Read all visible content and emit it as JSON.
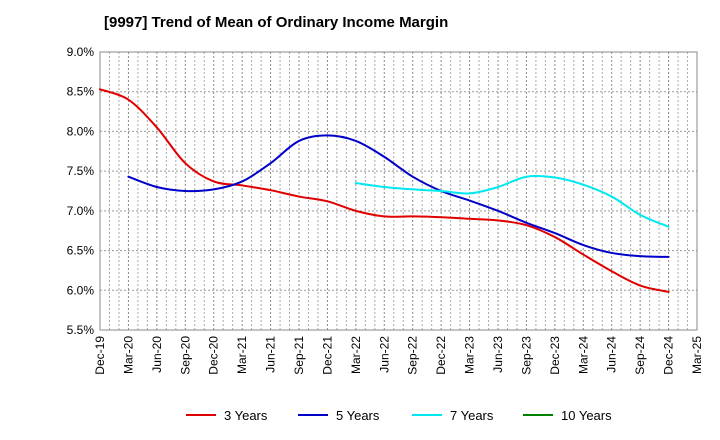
{
  "chart_data": {
    "type": "line",
    "title": "[9997]  Trend of Mean of Ordinary Income Margin",
    "xlabel": "",
    "ylabel": "",
    "x_ticks": [
      "Dec-19",
      "Mar-20",
      "Jun-20",
      "Sep-20",
      "Dec-20",
      "Mar-21",
      "Jun-21",
      "Sep-21",
      "Dec-21",
      "Mar-22",
      "Jun-22",
      "Sep-22",
      "Dec-22",
      "Mar-23",
      "Jun-23",
      "Sep-23",
      "Dec-23",
      "Mar-24",
      "Jun-24",
      "Sep-24",
      "Dec-24",
      "Mar-25"
    ],
    "y_ticks": [
      "5.5%",
      "6.0%",
      "6.5%",
      "7.0%",
      "7.5%",
      "8.0%",
      "8.5%",
      "9.0%"
    ],
    "ylim": [
      5.5,
      9.0
    ],
    "y_unit": "%",
    "grid": true,
    "legend_position": "bottom",
    "series": [
      {
        "name": "3 Years",
        "color": "#e00000",
        "x": [
          "Dec-19",
          "Mar-20",
          "Jun-20",
          "Sep-20",
          "Dec-20",
          "Mar-21",
          "Jun-21",
          "Sep-21",
          "Dec-21",
          "Mar-22",
          "Jun-22",
          "Sep-22",
          "Dec-22",
          "Mar-23",
          "Jun-23",
          "Sep-23",
          "Dec-23",
          "Mar-24",
          "Jun-24",
          "Sep-24",
          "Dec-24"
        ],
        "values": [
          8.53,
          8.4,
          8.05,
          7.6,
          7.37,
          7.32,
          7.26,
          7.18,
          7.12,
          7.0,
          6.93,
          6.93,
          6.92,
          6.9,
          6.88,
          6.82,
          6.67,
          6.45,
          6.24,
          6.06,
          5.98
        ]
      },
      {
        "name": "5 Years",
        "color": "#0000c8",
        "x": [
          "Mar-20",
          "Jun-20",
          "Sep-20",
          "Dec-20",
          "Mar-21",
          "Jun-21",
          "Sep-21",
          "Dec-21",
          "Mar-22",
          "Jun-22",
          "Sep-22",
          "Dec-22",
          "Mar-23",
          "Jun-23",
          "Sep-23",
          "Dec-23",
          "Mar-24",
          "Jun-24",
          "Sep-24",
          "Dec-24"
        ],
        "values": [
          7.43,
          7.3,
          7.25,
          7.27,
          7.37,
          7.6,
          7.88,
          7.95,
          7.88,
          7.68,
          7.43,
          7.25,
          7.13,
          7.0,
          6.85,
          6.72,
          6.57,
          6.47,
          6.43,
          6.42
        ]
      },
      {
        "name": "7 Years",
        "color": "#00e8f0",
        "x": [
          "Mar-22",
          "Jun-22",
          "Sep-22",
          "Dec-22",
          "Mar-23",
          "Jun-23",
          "Sep-23",
          "Dec-23",
          "Mar-24",
          "Jun-24",
          "Sep-24",
          "Dec-24"
        ],
        "values": [
          7.35,
          7.3,
          7.27,
          7.25,
          7.22,
          7.3,
          7.43,
          7.42,
          7.33,
          7.18,
          6.95,
          6.8
        ]
      },
      {
        "name": "10 Years",
        "color": "#008000",
        "x": [],
        "values": []
      }
    ]
  }
}
